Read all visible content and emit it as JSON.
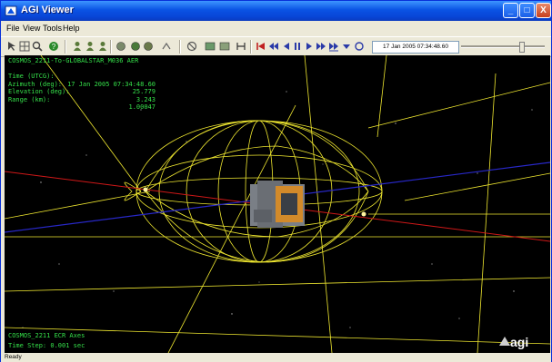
{
  "window": {
    "title": "AGI Viewer",
    "minimize": "_",
    "maximize": "□",
    "close": "X"
  },
  "menu": [
    "File",
    "View",
    "Tools",
    "Help"
  ],
  "toolbar": {
    "current_time": "17 Jan 2005 07:34:48.60",
    "icons": [
      "select-icon",
      "grid-icon",
      "zoom-icon",
      "help-icon",
      "person-view-icon",
      "person-orbit-icon",
      "person-pan-icon",
      "globe-icon",
      "earth-icon",
      "planet-icon",
      "rotate-icon",
      "home-icon",
      "window-icon",
      "window-sync-icon",
      "bracket-icon",
      "reset-icon",
      "step-back-icon",
      "step-reverse-icon",
      "pause-icon",
      "play-icon",
      "step-forward-icon",
      "fast-forward-icon",
      "decrease-speed-icon",
      "refresh-icon"
    ]
  },
  "overlay": {
    "title": "COSMOS_2211-To-GLOBALSTAR_M036 AER",
    "rows": [
      {
        "label": "Time (UTCG):",
        "value": "17 Jan 2005 07:34:48.60"
      },
      {
        "label": "Azimuth (deg):",
        "value": "25.779"
      },
      {
        "label": "Elevation (deg):",
        "value": "3.243"
      },
      {
        "label": "Range (km):",
        "value": "1.00047"
      }
    ],
    "axes_label": "COSMOS_2211 ECR Axes",
    "time_step": "Time Step: 0.001 sec"
  },
  "branding": {
    "logo_text": "agi"
  },
  "status": {
    "text": "Ready"
  },
  "colors": {
    "overlay_text": "#35e04a",
    "wireframe": "#f0e830",
    "axis_red": "#d01818",
    "axis_blue": "#2828c8",
    "viewport_bg": "#000000"
  }
}
